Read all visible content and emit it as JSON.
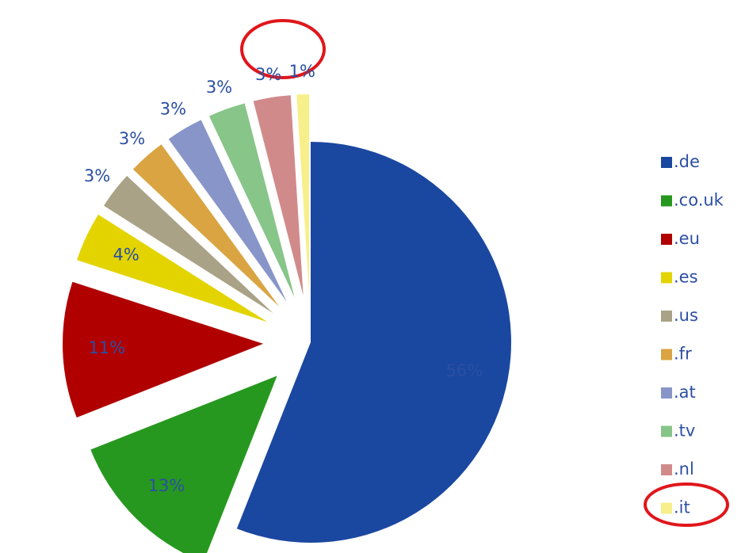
{
  "chart_data": {
    "type": "pie",
    "categories": [
      ".de",
      ".co.uk",
      ".eu",
      ".es",
      ".us",
      ".fr",
      ".at",
      ".tv",
      ".nl",
      ".it"
    ],
    "values": [
      56,
      13,
      11,
      4,
      3,
      3,
      3,
      3,
      3,
      1
    ],
    "value_labels": [
      "56%",
      "13%",
      "11%",
      "4%",
      "3%",
      "3%",
      "3%",
      "3%",
      "3%",
      "1%"
    ],
    "colors": [
      "#1a47a0",
      "#27981f",
      "#b00000",
      "#e3d400",
      "#a9a286",
      "#d9a441",
      "#8795c9",
      "#87c589",
      "#d18a8a",
      "#f7ef8a"
    ],
    "legend": "right"
  }
}
